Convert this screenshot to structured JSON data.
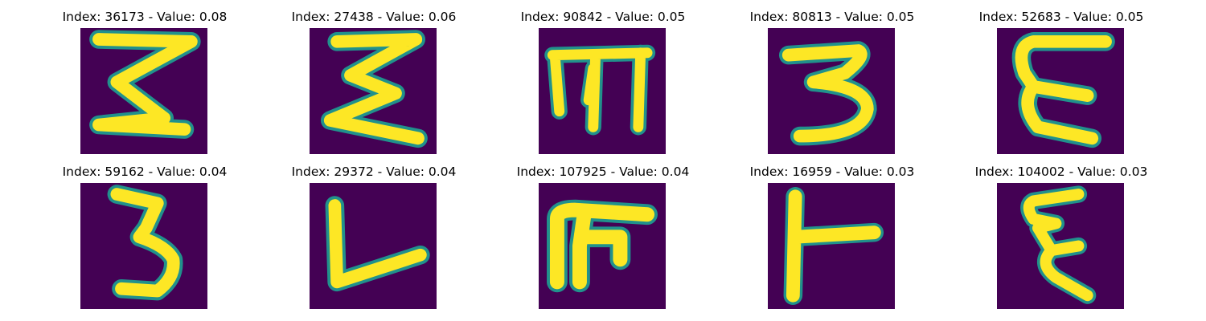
{
  "figure": {
    "background": "#ffffff",
    "cmap": "viridis",
    "colors": {
      "background_dark": "#440154",
      "mid": "#21918c",
      "bright": "#fde725"
    }
  },
  "panels": [
    {
      "title": "Index: 36173 - Value: 0.08",
      "index": 36173,
      "value": 0.08,
      "glyph": "sigma-like Σ shape"
    },
    {
      "title": "Index: 27438 - Value: 0.06",
      "index": 27438,
      "value": 0.06,
      "glyph": "Σ shape"
    },
    {
      "title": "Index: 90842 - Value: 0.05",
      "index": 90842,
      "value": 0.05,
      "glyph": "rotated m / Ш shape"
    },
    {
      "title": "Index: 80813 - Value: 0.05",
      "index": 80813,
      "value": 0.05,
      "glyph": "digit 3"
    },
    {
      "title": "Index: 52683 - Value: 0.05",
      "index": 52683,
      "value": 0.05,
      "glyph": "letter E"
    },
    {
      "title": "Index: 59162 - Value: 0.04",
      "index": 59162,
      "value": 0.04,
      "glyph": "digit 3"
    },
    {
      "title": "Index: 29372 - Value: 0.04",
      "index": 29372,
      "value": 0.04,
      "glyph": "letter L"
    },
    {
      "title": "Index: 107925 - Value: 0.04",
      "index": 107925,
      "value": 0.04,
      "glyph": "rotated h-like shape"
    },
    {
      "title": "Index: 16959 - Value: 0.03",
      "index": 16959,
      "value": 0.03,
      "glyph": "rotated T / ⊢ shape"
    },
    {
      "title": "Index: 104002 - Value: 0.03",
      "index": 104002,
      "value": 0.03,
      "glyph": "ε / ξ shape"
    }
  ]
}
